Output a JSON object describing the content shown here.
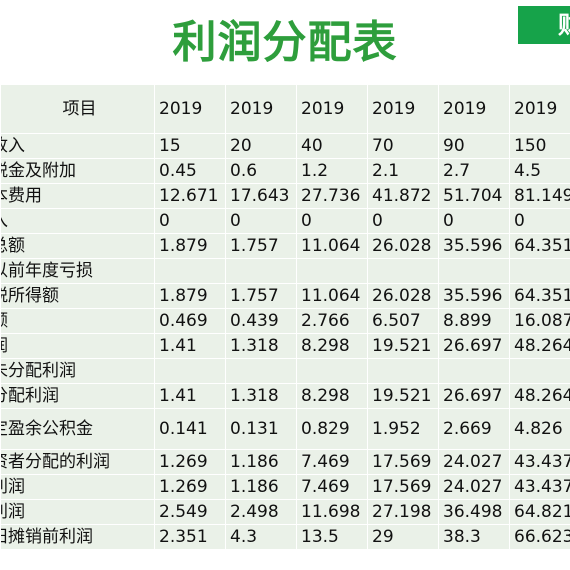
{
  "title": "利润分配表",
  "corner_tab": "财",
  "table": {
    "header_label": "项目",
    "years": [
      "2019",
      "2019",
      "2019",
      "2019",
      "2019",
      "2019"
    ],
    "rows": [
      {
        "label": "收入",
        "values": [
          "15",
          "20",
          "40",
          "70",
          "90",
          "150"
        ]
      },
      {
        "label": "税金及附加",
        "values": [
          "0.45",
          "0.6",
          "1.2",
          "2.1",
          "2.7",
          "4.5"
        ]
      },
      {
        "label": "本费用",
        "values": [
          "12.671",
          "17.643",
          "27.736",
          "41.872",
          "51.704",
          "81.149"
        ]
      },
      {
        "label": "入",
        "values": [
          "0",
          "0",
          "0",
          "0",
          "0",
          "0"
        ]
      },
      {
        "label": "总额",
        "values": [
          "1.879",
          "1.757",
          "11.064",
          "26.028",
          "35.596",
          "64.351"
        ]
      },
      {
        "label": "以前年度亏损",
        "values": [
          "",
          "",
          "",
          "",
          "",
          ""
        ]
      },
      {
        "label": "税所得额",
        "values": [
          "1.879",
          "1.757",
          "11.064",
          "26.028",
          "35.596",
          "64.351"
        ]
      },
      {
        "label": "额",
        "values": [
          "0.469",
          "0.439",
          "2.766",
          "6.507",
          "8.899",
          "16.087"
        ]
      },
      {
        "label": "润",
        "values": [
          "1.41",
          "1.318",
          "8.298",
          "19.521",
          "26.697",
          "48.264"
        ]
      },
      {
        "label": "未分配利润",
        "values": [
          "",
          "",
          "",
          "",
          "",
          ""
        ]
      },
      {
        "label": "分配利润",
        "values": [
          "1.41",
          "1.318",
          "8.298",
          "19.521",
          "26.697",
          "48.264"
        ]
      },
      {
        "label": "定盈余公积金",
        "values": [
          "0.141",
          "0.131",
          "0.829",
          "1.952",
          "2.669",
          "4.826"
        ],
        "tall": true
      },
      {
        "label": "资者分配的利润",
        "values": [
          "1.269",
          "1.186",
          "7.469",
          "17.569",
          "24.027",
          "43.437"
        ]
      },
      {
        "label": "利润",
        "values": [
          "1.269",
          "1.186",
          "7.469",
          "17.569",
          "24.027",
          "43.437"
        ]
      },
      {
        "label": "利润",
        "values": [
          "2.549",
          "2.498",
          "11.698",
          "27.198",
          "36.498",
          "64.821"
        ]
      },
      {
        "label": "旧摊销前利润",
        "values": [
          "2.351",
          "4.3",
          "13.5",
          "29",
          "38.3",
          "66.623"
        ]
      }
    ]
  }
}
